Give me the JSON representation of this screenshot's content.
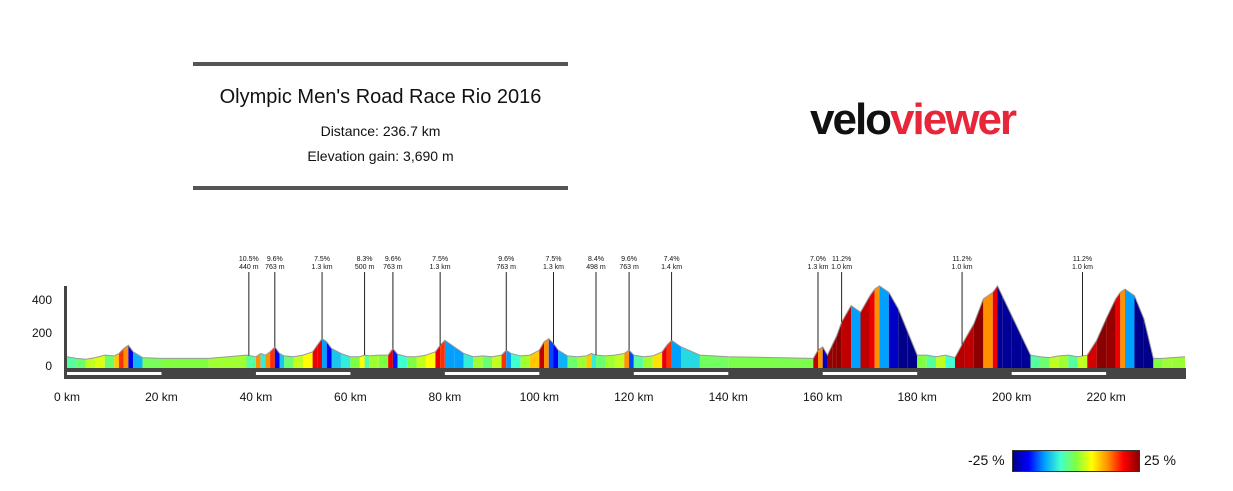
{
  "header": {
    "title": "Olympic Men's Road Race Rio 2016",
    "distance": "Distance: 236.7 km",
    "elevation_gain": "Elevation gain: 3,690 m"
  },
  "logo": {
    "part1": "velo",
    "part2": "viewer"
  },
  "legend": {
    "min_label": "-25 %",
    "max_label": "25 %"
  },
  "chart_data": {
    "type": "area",
    "xlabel": "",
    "ylabel": "",
    "xlim": [
      0,
      236.7
    ],
    "ylim": [
      -60,
      520
    ],
    "y_ticks": [
      0,
      200,
      400
    ],
    "x_ticks": [
      0,
      20,
      40,
      60,
      80,
      100,
      120,
      140,
      160,
      180,
      200,
      220
    ],
    "x_tick_labels": [
      "0 km",
      "20 km",
      "40 km",
      "60 km",
      "80 km",
      "100 km",
      "120 km",
      "140 km",
      "160 km",
      "180 km",
      "200 km",
      "220 km"
    ],
    "profile": {
      "x": [
        0,
        2,
        4,
        6,
        8,
        10,
        11,
        12,
        13,
        14,
        16,
        20,
        30,
        38,
        39,
        40,
        41,
        42,
        43,
        44,
        45,
        46,
        48,
        50,
        52,
        53,
        54,
        55,
        56,
        58,
        60,
        62,
        63,
        64,
        66,
        68,
        69,
        70,
        72,
        74,
        76,
        78,
        79,
        80,
        82,
        84,
        86,
        88,
        90,
        92,
        93,
        94,
        96,
        98,
        100,
        101,
        102,
        103,
        104,
        106,
        108,
        110,
        111,
        112,
        114,
        116,
        118,
        119,
        120,
        122,
        124,
        126,
        127,
        128,
        130,
        134,
        140,
        150,
        158,
        159,
        160,
        161,
        162,
        163,
        164,
        166,
        168,
        170,
        171,
        172,
        174,
        176,
        178,
        180,
        182,
        184,
        186,
        188,
        190,
        192,
        194,
        196,
        197,
        198,
        200,
        202,
        204,
        206,
        208,
        210,
        212,
        214,
        216,
        218,
        220,
        222,
        223,
        224,
        226,
        228,
        230,
        232,
        234,
        236.7
      ],
      "elevation": [
        50,
        40,
        35,
        45,
        60,
        55,
        70,
        100,
        120,
        80,
        45,
        40,
        40,
        60,
        55,
        50,
        70,
        60,
        80,
        110,
        70,
        55,
        50,
        60,
        80,
        120,
        160,
        140,
        100,
        70,
        50,
        50,
        60,
        55,
        60,
        60,
        100,
        65,
        50,
        50,
        60,
        80,
        120,
        150,
        110,
        70,
        50,
        55,
        50,
        60,
        90,
        70,
        55,
        60,
        90,
        140,
        160,
        130,
        90,
        55,
        50,
        55,
        70,
        60,
        55,
        60,
        70,
        90,
        60,
        50,
        55,
        80,
        120,
        150,
        110,
        60,
        50,
        45,
        40,
        90,
        110,
        60,
        120,
        180,
        260,
        360,
        320,
        420,
        460,
        480,
        440,
        340,
        200,
        60,
        60,
        50,
        60,
        45,
        150,
        250,
        400,
        440,
        480,
        420,
        300,
        180,
        60,
        50,
        45,
        55,
        60,
        50,
        60,
        150,
        280,
        400,
        440,
        460,
        420,
        280,
        40,
        40,
        45,
        50
      ]
    },
    "climbs": [
      {
        "km": 38.5,
        "gradient": "10.5%",
        "length": "440 m"
      },
      {
        "km": 44.0,
        "gradient": "9.6%",
        "length": "763 m"
      },
      {
        "km": 54.0,
        "gradient": "7.5%",
        "length": "1.3 km"
      },
      {
        "km": 63.0,
        "gradient": "8.3%",
        "length": "500 m"
      },
      {
        "km": 69.0,
        "gradient": "9.6%",
        "length": "763 m"
      },
      {
        "km": 79.0,
        "gradient": "7.5%",
        "length": "1.3 km"
      },
      {
        "km": 93.0,
        "gradient": "9.6%",
        "length": "763 m"
      },
      {
        "km": 103.0,
        "gradient": "7.5%",
        "length": "1.3 km"
      },
      {
        "km": 112.0,
        "gradient": "8.4%",
        "length": "498 m"
      },
      {
        "km": 119.0,
        "gradient": "9.6%",
        "length": "763 m"
      },
      {
        "km": 128.0,
        "gradient": "7.4%",
        "length": "1.4 km"
      },
      {
        "km": 159.0,
        "gradient": "7.0%",
        "length": "1.3 km"
      },
      {
        "km": 164.0,
        "gradient": "11.2%",
        "length": "1.0 km"
      },
      {
        "km": 189.5,
        "gradient": "11.2%",
        "length": "1.0 km"
      },
      {
        "km": 215.0,
        "gradient": "11.2%",
        "length": "1.0 km"
      }
    ]
  }
}
